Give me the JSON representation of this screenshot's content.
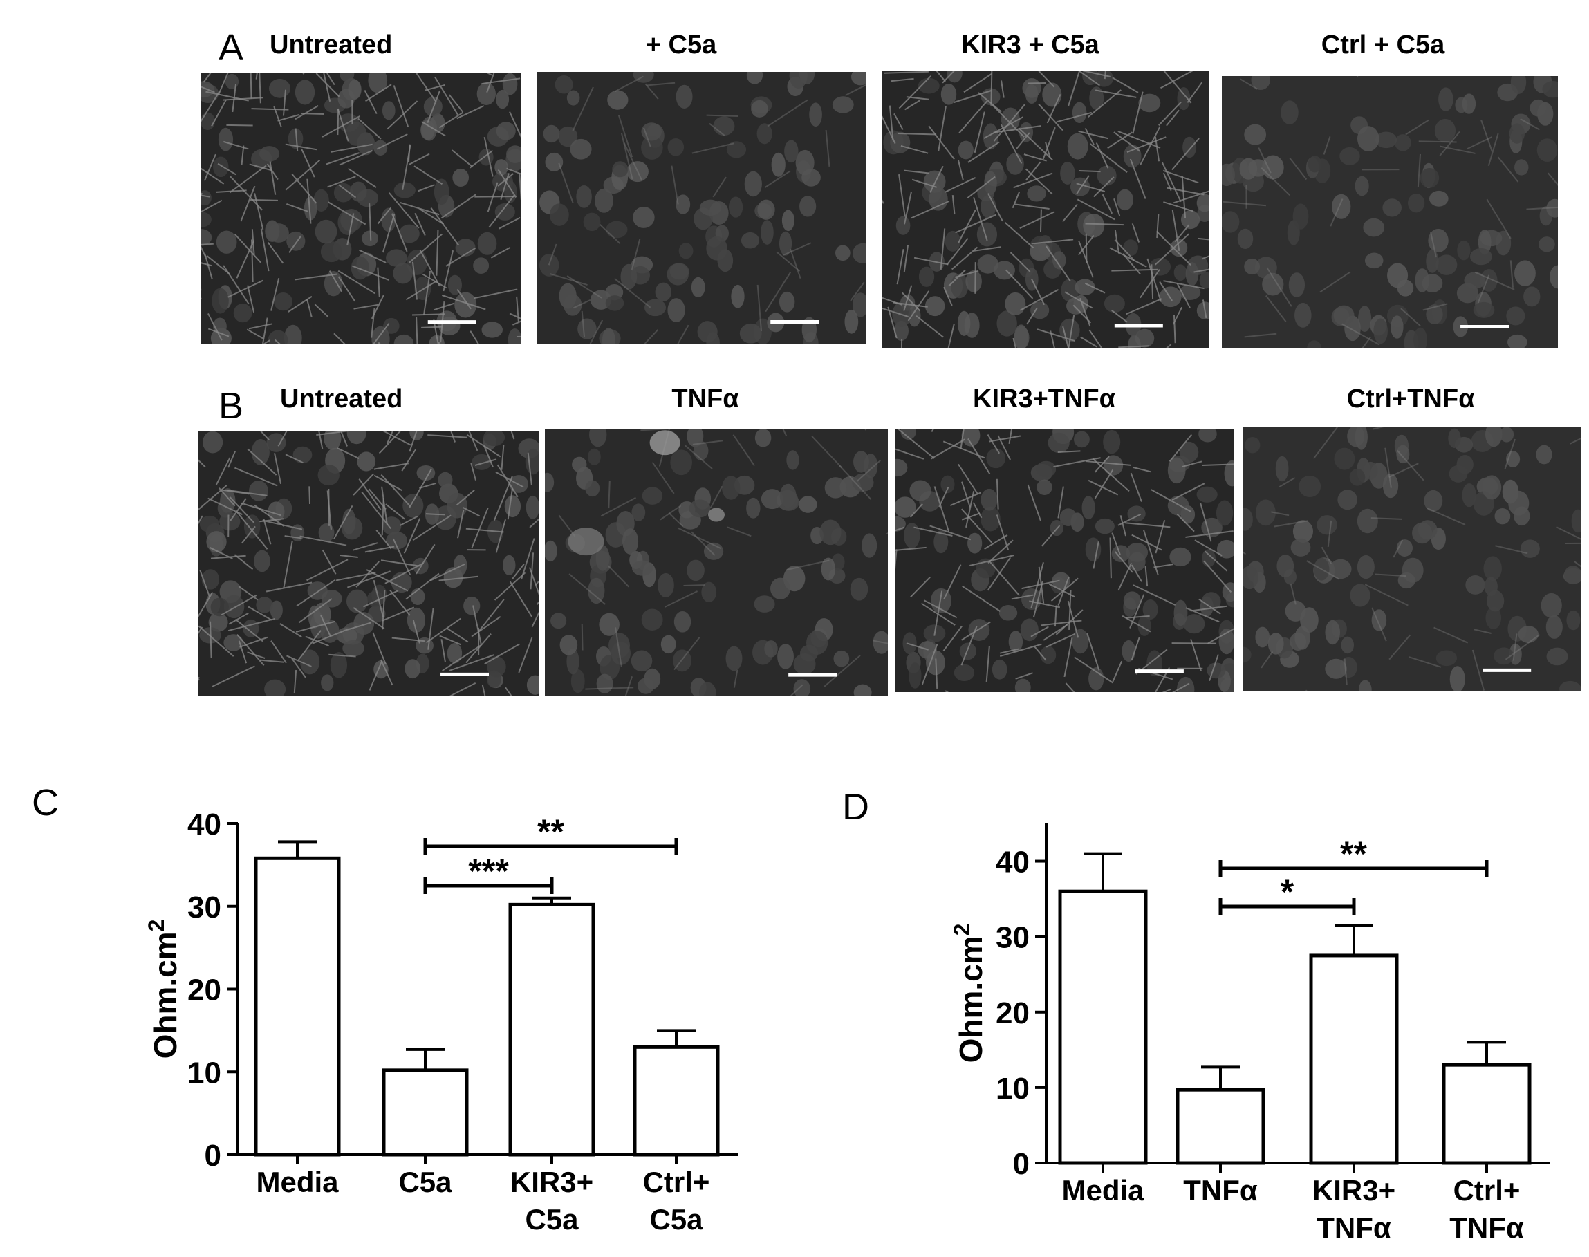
{
  "panels": {
    "a": {
      "letter": "A",
      "titles": [
        "Untreated",
        "+ C5a",
        "KIR3 + C5a",
        "Ctrl + C5a"
      ],
      "images": [
        {
          "pattern": "junctions-strong"
        },
        {
          "pattern": "diffuse"
        },
        {
          "pattern": "junctions-strong"
        },
        {
          "pattern": "diffuse-light"
        }
      ]
    },
    "b": {
      "letter": "B",
      "titles": [
        "Untreated",
        "TNFα",
        "KIR3+TNFα",
        "Ctrl+TNFα"
      ],
      "images": [
        {
          "pattern": "junctions-strong"
        },
        {
          "pattern": "diffuse-blotch"
        },
        {
          "pattern": "junctions-medium"
        },
        {
          "pattern": "diffuse-light"
        }
      ]
    },
    "c": {
      "letter": "C"
    },
    "d": {
      "letter": "D"
    }
  },
  "chart_data": [
    {
      "panel": "C",
      "type": "bar",
      "categories": [
        [
          "Media"
        ],
        [
          "C5a"
        ],
        [
          "KIR3+",
          "C5a"
        ],
        [
          "Ctrl+",
          "C5a"
        ]
      ],
      "values": [
        35.8,
        10.2,
        30.2,
        13.0
      ],
      "errors": [
        2.0,
        2.5,
        0.8,
        2.0
      ],
      "ylabel": "Ohm.cm",
      "ylabel_sup": "2",
      "ylim": [
        0,
        40
      ],
      "yticks": [
        "0",
        "10",
        "20",
        "30",
        "40"
      ],
      "significance": [
        {
          "from": 1,
          "to": 3,
          "label": "**"
        },
        {
          "from": 1,
          "to": 2,
          "label": "***"
        }
      ]
    },
    {
      "panel": "D",
      "type": "bar",
      "categories": [
        [
          "Media"
        ],
        [
          "TNFα"
        ],
        [
          "KIR3+",
          "TNFα"
        ],
        [
          "Ctrl+",
          "TNFα"
        ]
      ],
      "values": [
        36.0,
        9.7,
        27.5,
        13.0
      ],
      "errors": [
        5.0,
        3.0,
        4.0,
        3.0
      ],
      "ylabel": "Ohm.cm",
      "ylabel_sup": "2",
      "ylim": [
        0,
        45
      ],
      "yticks": [
        "0",
        "10",
        "20",
        "30",
        "40"
      ],
      "significance": [
        {
          "from": 1,
          "to": 3,
          "label": "**"
        },
        {
          "from": 1,
          "to": 2,
          "label": "*"
        }
      ]
    }
  ]
}
